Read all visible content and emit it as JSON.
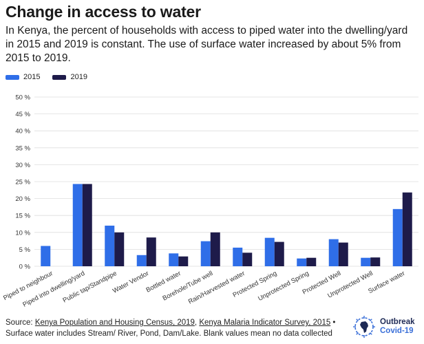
{
  "title": "Change in access to water",
  "subtitle": "In Kenya, the percent of households with access to piped water into the dwelling/yard in 2015 and 2019 is constant. The use of surface water increased by about 5% from 2015 to 2019.",
  "colors": {
    "y2015": "#2f6ee8",
    "y2019": "#1e1b4a",
    "grid": "#dddddd"
  },
  "chart_data": {
    "type": "bar",
    "title": "Change in access to water",
    "xlabel": "",
    "ylabel": "",
    "ylim": [
      0,
      50
    ],
    "yticks": [
      "0 %",
      "5 %",
      "10 %",
      "15 %",
      "20 %",
      "25 %",
      "30 %",
      "35 %",
      "40 %",
      "45 %",
      "50 %"
    ],
    "ytick_values": [
      0,
      5,
      10,
      15,
      20,
      25,
      30,
      35,
      40,
      45,
      50
    ],
    "legend_position": "top-left",
    "categories": [
      "Piped to neighbour",
      "Piped into dwelling/yard",
      "Public tap/Standpipe",
      "Water Vendor",
      "Bottled water",
      "Borehole/Tube well",
      "Rain/Harvested water",
      "Protected Spring",
      "Unprotected Spring",
      "Protected Well",
      "Unprotected Well",
      "Surface water"
    ],
    "series": [
      {
        "name": "2015",
        "values": [
          6.0,
          24.3,
          12.0,
          3.3,
          3.8,
          7.4,
          5.5,
          8.4,
          2.3,
          8.0,
          2.5,
          16.9
        ]
      },
      {
        "name": "2019",
        "values": [
          null,
          24.3,
          10.0,
          8.5,
          2.9,
          10.0,
          4.0,
          7.2,
          2.5,
          7.0,
          2.6,
          21.8
        ]
      }
    ]
  },
  "source": {
    "prefix": "Source: ",
    "link1": "Kenya Population and Housing Census, 2019",
    "sep": ", ",
    "link2": "Kenya Malaria Indicator Survey, 2015",
    "suffix": " •",
    "line2": "Surface water includes Stream/ River, Pond, Dam/Lake. Blank values mean no data collected"
  },
  "brand": {
    "line1": "Outbreak",
    "line2": "Covid-19",
    "logo_icon": "africa-virus-icon"
  }
}
